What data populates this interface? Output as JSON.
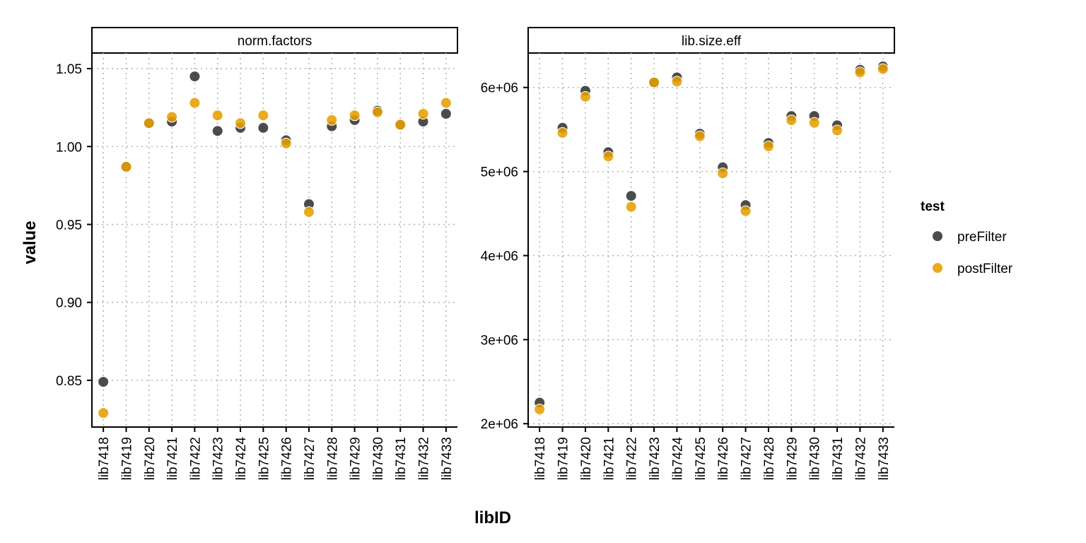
{
  "chart_data": {
    "type": "scatter",
    "xlabel": "libID",
    "ylabel": "value",
    "categories": [
      "lib7418",
      "lib7419",
      "lib7420",
      "lib7421",
      "lib7422",
      "lib7423",
      "lib7424",
      "lib7425",
      "lib7426",
      "lib7427",
      "lib7428",
      "lib7429",
      "lib7430",
      "lib7431",
      "lib7432",
      "lib7433"
    ],
    "legend": {
      "title": "test",
      "position": "right",
      "items": [
        {
          "name": "preFilter",
          "color": "#333333"
        },
        {
          "name": "postFilter",
          "color": "#E69F00"
        }
      ]
    },
    "grid": "dotted",
    "facets": [
      {
        "title": "norm.factors",
        "ylim": [
          0.82,
          1.06
        ],
        "yticks": [
          0.85,
          0.9,
          0.95,
          1.0,
          1.05
        ],
        "ytick_labels": [
          "0.85",
          "0.90",
          "0.95",
          "1.00",
          "1.05"
        ],
        "series": [
          {
            "name": "preFilter",
            "values": [
              0.849,
              0.987,
              1.015,
              1.016,
              1.045,
              1.01,
              1.012,
              1.012,
              1.004,
              0.963,
              1.013,
              1.017,
              1.023,
              1.014,
              1.016,
              1.021
            ]
          },
          {
            "name": "postFilter",
            "values": [
              0.829,
              0.987,
              1.015,
              1.019,
              1.028,
              1.02,
              1.015,
              1.02,
              1.002,
              0.958,
              1.017,
              1.02,
              1.022,
              1.014,
              1.021,
              1.028
            ]
          }
        ]
      },
      {
        "title": "lib.size.eff",
        "ylim": [
          1960000,
          6410000
        ],
        "yticks": [
          2000000,
          3000000,
          4000000,
          5000000,
          6000000
        ],
        "ytick_labels": [
          "2e+06",
          "3e+06",
          "4e+06",
          "5e+06",
          "6e+06"
        ],
        "series": [
          {
            "name": "preFilter",
            "values": [
              2250000,
              5520000,
              5960000,
              5230000,
              4710000,
              6060000,
              6120000,
              5450000,
              5050000,
              4600000,
              5340000,
              5660000,
              5660000,
              5550000,
              6210000,
              6250000
            ]
          },
          {
            "name": "postFilter",
            "values": [
              2170000,
              5460000,
              5890000,
              5180000,
              4580000,
              6060000,
              6070000,
              5420000,
              4980000,
              4530000,
              5300000,
              5610000,
              5580000,
              5490000,
              6180000,
              6220000
            ]
          }
        ]
      }
    ]
  }
}
